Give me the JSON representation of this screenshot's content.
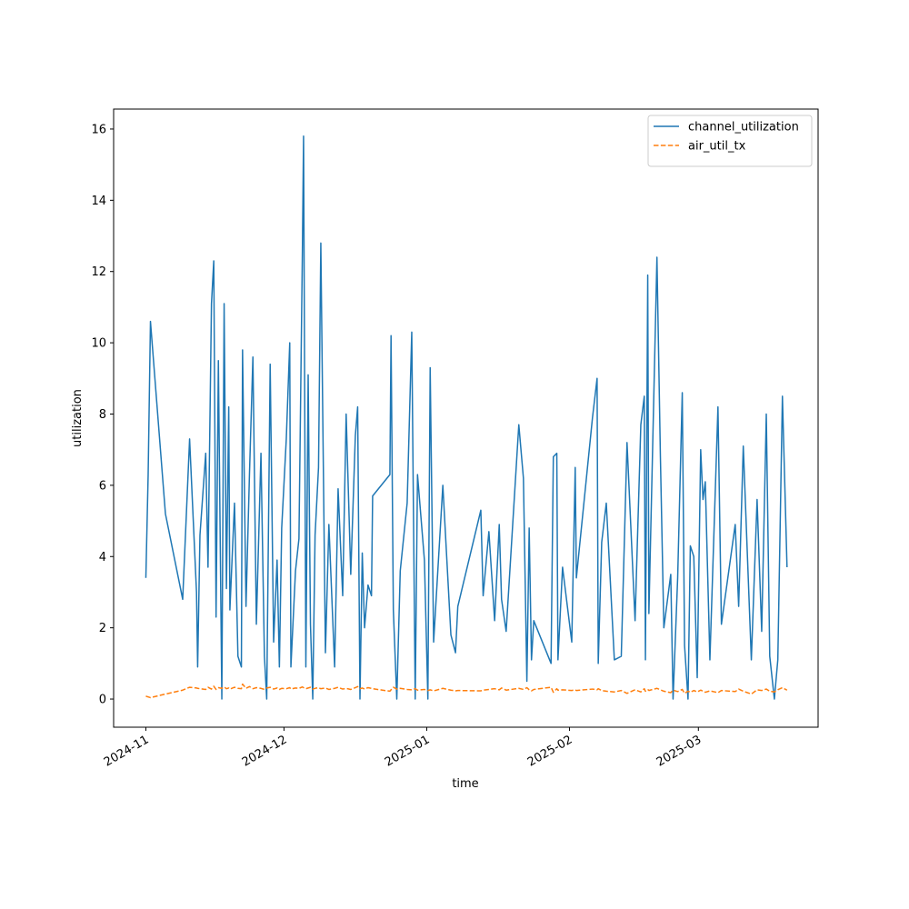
{
  "chart_data": {
    "type": "line",
    "x_label": "time",
    "y_label": "utilization",
    "x": [
      "2024-11-01T00:00",
      "2024-11-01T12:00",
      "2024-11-02T00:00",
      "2024-11-05T06:00",
      "2024-11-09T00:00",
      "2024-11-10T12:00",
      "2024-11-12T00:00",
      "2024-11-12T06:00",
      "2024-11-12T18:00",
      "2024-11-14T00:00",
      "2024-11-14T12:00",
      "2024-11-15T06:00",
      "2024-11-15T18:00",
      "2024-11-16T06:00",
      "2024-11-16T18:00",
      "2024-11-17T12:00",
      "2024-11-18T00:00",
      "2024-11-18T12:00",
      "2024-11-19T00:00",
      "2024-11-19T06:00",
      "2024-11-20T06:00",
      "2024-11-21T00:00",
      "2024-11-21T18:00",
      "2024-11-22T00:00",
      "2024-11-22T18:00",
      "2024-11-23T12:00",
      "2024-11-24T06:00",
      "2024-11-25T00:00",
      "2024-11-26T00:00",
      "2024-11-26T18:00",
      "2024-11-27T06:00",
      "2024-11-28T00:00",
      "2024-11-28T18:00",
      "2024-11-29T12:00",
      "2024-11-30T00:00",
      "2024-11-30T12:00",
      "2024-12-01T12:00",
      "2024-12-02T06:00",
      "2024-12-02T12:00",
      "2024-12-03T12:00",
      "2024-12-04T06:00",
      "2024-12-05T00:00",
      "2024-12-05T06:00",
      "2024-12-05T18:00",
      "2024-12-06T06:00",
      "2024-12-06T18:00",
      "2024-12-07T06:00",
      "2024-12-07T18:00",
      "2024-12-08T12:00",
      "2024-12-09T00:00",
      "2024-12-10T00:00",
      "2024-12-10T18:00",
      "2024-12-12T00:00",
      "2024-12-12T18:00",
      "2024-12-13T18:00",
      "2024-12-14T12:00",
      "2024-12-15T12:00",
      "2024-12-16T12:00",
      "2024-12-17T00:00",
      "2024-12-17T12:00",
      "2024-12-18T00:00",
      "2024-12-18T12:00",
      "2024-12-19T06:00",
      "2024-12-20T00:00",
      "2024-12-20T06:00",
      "2024-12-24T00:00",
      "2024-12-24T06:00",
      "2024-12-24T18:00",
      "2024-12-25T12:00",
      "2024-12-26T06:00",
      "2024-12-27T18:00",
      "2024-12-28T18:00",
      "2024-12-29T12:00",
      "2024-12-30T00:00",
      "2024-12-31T12:00",
      "2025-01-01T06:00",
      "2025-01-01T18:00",
      "2025-01-02T12:00",
      "2025-01-04T12:00",
      "2025-01-06T06:00",
      "2025-01-07T06:00",
      "2025-01-07T18:00",
      "2025-01-12T18:00",
      "2025-01-13T06:00",
      "2025-01-14T12:00",
      "2025-01-15T18:00",
      "2025-01-16T18:00",
      "2025-01-17T06:00",
      "2025-01-18T06:00",
      "2025-01-21T00:00",
      "2025-01-22T00:00",
      "2025-01-22T18:00",
      "2025-01-23T06:00",
      "2025-01-23T18:00",
      "2025-01-24T06:00",
      "2025-01-28T00:00",
      "2025-01-28T12:00",
      "2025-01-29T06:00",
      "2025-01-29T12:00",
      "2025-01-30T12:00",
      "2025-02-01T12:00",
      "2025-02-02T06:00",
      "2025-02-02T12:00",
      "2025-02-06T00:00",
      "2025-02-07T00:00",
      "2025-02-07T06:00",
      "2025-02-08T00:00",
      "2025-02-09T00:00",
      "2025-02-10T18:00",
      "2025-02-12T06:00",
      "2025-02-13T12:00",
      "2025-02-15T06:00",
      "2025-02-16T12:00",
      "2025-02-17T06:00",
      "2025-02-17T12:00",
      "2025-02-18T00:00",
      "2025-02-18T06:00",
      "2025-02-20T00:00",
      "2025-02-20T18:00",
      "2025-02-21T12:00",
      "2025-02-23T00:00",
      "2025-02-23T12:00",
      "2025-02-24T12:00",
      "2025-02-25T12:00",
      "2025-02-26T00:00",
      "2025-02-26T18:00",
      "2025-02-27T06:00",
      "2025-02-28T00:00",
      "2025-02-28T18:00",
      "2025-03-01T12:00",
      "2025-03-02T00:00",
      "2025-03-02T12:00",
      "2025-03-03T12:00",
      "2025-03-05T06:00",
      "2025-03-06T00:00",
      "2025-03-09T00:00",
      "2025-03-09T18:00",
      "2025-03-10T18:00",
      "2025-03-12T12:00",
      "2025-03-13T18:00",
      "2025-03-14T18:00",
      "2025-03-15T18:00",
      "2025-03-16T12:00",
      "2025-03-17T12:00",
      "2025-03-18T06:00",
      "2025-03-19T06:00",
      "2025-03-20T06:00"
    ],
    "series": [
      {
        "name": "channel_utilization",
        "color": "#1f77b4",
        "dash": "solid",
        "values": [
          3.4,
          6.3,
          10.6,
          5.2,
          2.8,
          7.3,
          3.0,
          0.9,
          4.6,
          6.9,
          3.7,
          11.1,
          12.3,
          2.3,
          9.5,
          0,
          11.1,
          3.1,
          8.2,
          2.5,
          5.5,
          1.2,
          0.9,
          9.8,
          2.6,
          6.3,
          9.6,
          2.1,
          6.9,
          1.2,
          0,
          9.4,
          1.6,
          3.9,
          0.9,
          4.8,
          7.3,
          10.0,
          0.9,
          3.6,
          4.5,
          12.6,
          15.8,
          0.9,
          9.1,
          2.1,
          0,
          4.6,
          6.5,
          12.8,
          1.3,
          4.9,
          0.9,
          5.9,
          2.9,
          8.0,
          3.5,
          7.4,
          8.2,
          0,
          4.1,
          2.0,
          3.2,
          2.9,
          5.7,
          6.3,
          10.2,
          2.5,
          0,
          3.6,
          5.5,
          10.3,
          0,
          6.3,
          3.9,
          0,
          9.3,
          1.6,
          6.0,
          1.8,
          1.3,
          2.6,
          5.3,
          2.9,
          4.7,
          2.2,
          4.9,
          2.8,
          1.9,
          7.7,
          6.2,
          0.5,
          4.8,
          1.1,
          2.2,
          1.0,
          6.8,
          6.9,
          1.1,
          3.7,
          1.6,
          6.5,
          3.4,
          7.9,
          9.0,
          1.0,
          4.4,
          5.5,
          1.1,
          1.2,
          7.2,
          2.2,
          7.7,
          8.5,
          1.1,
          11.9,
          2.4,
          12.4,
          6.8,
          2.0,
          3.5,
          0,
          3.4,
          8.6,
          1.5,
          0,
          4.3,
          4.0,
          0.6,
          7.0,
          5.6,
          6.1,
          1.1,
          8.2,
          2.1,
          4.9,
          2.6,
          7.1,
          1.1,
          5.6,
          1.9,
          8.0,
          1.2,
          0,
          1.1,
          8.5,
          3.7
        ]
      },
      {
        "name": "air_util_tx",
        "color": "#ff7f0e",
        "dash": "dashed",
        "values": [
          0.08,
          0.06,
          0.04,
          0.14,
          0.25,
          0.33,
          0.31,
          0.3,
          0.29,
          0.27,
          0.33,
          0.28,
          0.36,
          0.27,
          0.32,
          0.3,
          0.34,
          0.29,
          0.31,
          0.28,
          0.33,
          0.3,
          0.29,
          0.42,
          0.3,
          0.35,
          0.29,
          0.32,
          0.3,
          0.27,
          0.31,
          0.33,
          0.28,
          0.31,
          0.27,
          0.3,
          0.29,
          0.32,
          0.28,
          0.31,
          0.3,
          0.34,
          0.32,
          0.29,
          0.31,
          0.33,
          0.28,
          0.3,
          0.32,
          0.29,
          0.31,
          0.27,
          0.3,
          0.33,
          0.28,
          0.3,
          0.27,
          0.32,
          0.35,
          0.29,
          0.31,
          0.28,
          0.32,
          0.3,
          0.29,
          0.22,
          0.26,
          0.33,
          0.28,
          0.3,
          0.27,
          0.26,
          0.29,
          0.25,
          0.27,
          0.24,
          0.26,
          0.23,
          0.3,
          0.25,
          0.23,
          0.24,
          0.23,
          0.25,
          0.27,
          0.29,
          0.26,
          0.31,
          0.25,
          0.3,
          0.27,
          0.32,
          0.26,
          0.23,
          0.27,
          0.33,
          0.19,
          0.29,
          0.25,
          0.26,
          0.24,
          0.26,
          0.24,
          0.28,
          0.26,
          0.29,
          0.24,
          0.22,
          0.2,
          0.24,
          0.16,
          0.26,
          0.2,
          0.29,
          0.22,
          0.27,
          0.24,
          0.3,
          0.26,
          0.22,
          0.18,
          0.25,
          0.21,
          0.27,
          0.16,
          0.22,
          0.19,
          0.24,
          0.2,
          0.25,
          0.22,
          0.19,
          0.23,
          0.18,
          0.24,
          0.21,
          0.28,
          0.22,
          0.14,
          0.26,
          0.24,
          0.28,
          0.22,
          0.2,
          0.26,
          0.32,
          0.25
        ]
      }
    ],
    "xlim": [
      "2024-10-25T00:00",
      "2025-03-27T00:00"
    ],
    "xticks": [
      {
        "value": "2024-11-01T00:00",
        "label": "2024-11"
      },
      {
        "value": "2024-12-01T00:00",
        "label": "2024-12"
      },
      {
        "value": "2025-01-01T00:00",
        "label": "2025-01"
      },
      {
        "value": "2025-02-01T00:00",
        "label": "2025-02"
      },
      {
        "value": "2025-03-01T00:00",
        "label": "2025-03"
      }
    ],
    "ylim": [
      -0.79,
      16.56
    ],
    "yticks": [
      0,
      2,
      4,
      6,
      8,
      10,
      12,
      14,
      16
    ],
    "grid": false,
    "legend": "upper right"
  }
}
